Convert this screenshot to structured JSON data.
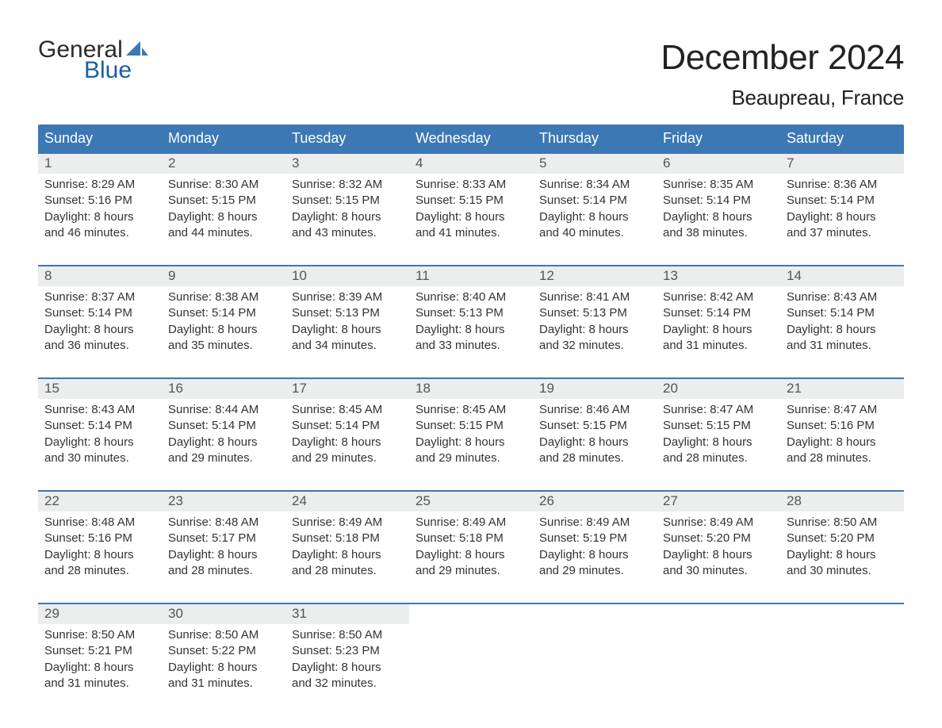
{
  "logo": {
    "word1": "General",
    "word2": "Blue",
    "text_color_dark": "#2b2b2b",
    "text_color_blue": "#1b5ea3",
    "sail_color": "#3c78b4"
  },
  "title": "December 2024",
  "location": "Beaupreau, France",
  "colors": {
    "header_bg": "#3c78b4",
    "header_text": "#ffffff",
    "daynum_bg": "#eceded",
    "daynum_text": "#555555",
    "body_text": "#333333",
    "week_border": "#3c78b4",
    "page_bg": "#ffffff"
  },
  "fonts": {
    "family": "Arial, Helvetica, sans-serif",
    "title_size_pt": 33,
    "location_size_pt": 20,
    "header_size_pt": 14,
    "daynum_size_pt": 13,
    "body_size_pt": 11
  },
  "day_headers": [
    "Sunday",
    "Monday",
    "Tuesday",
    "Wednesday",
    "Thursday",
    "Friday",
    "Saturday"
  ],
  "weeks": [
    [
      {
        "n": "1",
        "sunrise": "8:29 AM",
        "sunset": "5:16 PM",
        "dl1": "8 hours",
        "dl2": "and 46 minutes."
      },
      {
        "n": "2",
        "sunrise": "8:30 AM",
        "sunset": "5:15 PM",
        "dl1": "8 hours",
        "dl2": "and 44 minutes."
      },
      {
        "n": "3",
        "sunrise": "8:32 AM",
        "sunset": "5:15 PM",
        "dl1": "8 hours",
        "dl2": "and 43 minutes."
      },
      {
        "n": "4",
        "sunrise": "8:33 AM",
        "sunset": "5:15 PM",
        "dl1": "8 hours",
        "dl2": "and 41 minutes."
      },
      {
        "n": "5",
        "sunrise": "8:34 AM",
        "sunset": "5:14 PM",
        "dl1": "8 hours",
        "dl2": "and 40 minutes."
      },
      {
        "n": "6",
        "sunrise": "8:35 AM",
        "sunset": "5:14 PM",
        "dl1": "8 hours",
        "dl2": "and 38 minutes."
      },
      {
        "n": "7",
        "sunrise": "8:36 AM",
        "sunset": "5:14 PM",
        "dl1": "8 hours",
        "dl2": "and 37 minutes."
      }
    ],
    [
      {
        "n": "8",
        "sunrise": "8:37 AM",
        "sunset": "5:14 PM",
        "dl1": "8 hours",
        "dl2": "and 36 minutes."
      },
      {
        "n": "9",
        "sunrise": "8:38 AM",
        "sunset": "5:14 PM",
        "dl1": "8 hours",
        "dl2": "and 35 minutes."
      },
      {
        "n": "10",
        "sunrise": "8:39 AM",
        "sunset": "5:13 PM",
        "dl1": "8 hours",
        "dl2": "and 34 minutes."
      },
      {
        "n": "11",
        "sunrise": "8:40 AM",
        "sunset": "5:13 PM",
        "dl1": "8 hours",
        "dl2": "and 33 minutes."
      },
      {
        "n": "12",
        "sunrise": "8:41 AM",
        "sunset": "5:13 PM",
        "dl1": "8 hours",
        "dl2": "and 32 minutes."
      },
      {
        "n": "13",
        "sunrise": "8:42 AM",
        "sunset": "5:14 PM",
        "dl1": "8 hours",
        "dl2": "and 31 minutes."
      },
      {
        "n": "14",
        "sunrise": "8:43 AM",
        "sunset": "5:14 PM",
        "dl1": "8 hours",
        "dl2": "and 31 minutes."
      }
    ],
    [
      {
        "n": "15",
        "sunrise": "8:43 AM",
        "sunset": "5:14 PM",
        "dl1": "8 hours",
        "dl2": "and 30 minutes."
      },
      {
        "n": "16",
        "sunrise": "8:44 AM",
        "sunset": "5:14 PM",
        "dl1": "8 hours",
        "dl2": "and 29 minutes."
      },
      {
        "n": "17",
        "sunrise": "8:45 AM",
        "sunset": "5:14 PM",
        "dl1": "8 hours",
        "dl2": "and 29 minutes."
      },
      {
        "n": "18",
        "sunrise": "8:45 AM",
        "sunset": "5:15 PM",
        "dl1": "8 hours",
        "dl2": "and 29 minutes."
      },
      {
        "n": "19",
        "sunrise": "8:46 AM",
        "sunset": "5:15 PM",
        "dl1": "8 hours",
        "dl2": "and 28 minutes."
      },
      {
        "n": "20",
        "sunrise": "8:47 AM",
        "sunset": "5:15 PM",
        "dl1": "8 hours",
        "dl2": "and 28 minutes."
      },
      {
        "n": "21",
        "sunrise": "8:47 AM",
        "sunset": "5:16 PM",
        "dl1": "8 hours",
        "dl2": "and 28 minutes."
      }
    ],
    [
      {
        "n": "22",
        "sunrise": "8:48 AM",
        "sunset": "5:16 PM",
        "dl1": "8 hours",
        "dl2": "and 28 minutes."
      },
      {
        "n": "23",
        "sunrise": "8:48 AM",
        "sunset": "5:17 PM",
        "dl1": "8 hours",
        "dl2": "and 28 minutes."
      },
      {
        "n": "24",
        "sunrise": "8:49 AM",
        "sunset": "5:18 PM",
        "dl1": "8 hours",
        "dl2": "and 28 minutes."
      },
      {
        "n": "25",
        "sunrise": "8:49 AM",
        "sunset": "5:18 PM",
        "dl1": "8 hours",
        "dl2": "and 29 minutes."
      },
      {
        "n": "26",
        "sunrise": "8:49 AM",
        "sunset": "5:19 PM",
        "dl1": "8 hours",
        "dl2": "and 29 minutes."
      },
      {
        "n": "27",
        "sunrise": "8:49 AM",
        "sunset": "5:20 PM",
        "dl1": "8 hours",
        "dl2": "and 30 minutes."
      },
      {
        "n": "28",
        "sunrise": "8:50 AM",
        "sunset": "5:20 PM",
        "dl1": "8 hours",
        "dl2": "and 30 minutes."
      }
    ],
    [
      {
        "n": "29",
        "sunrise": "8:50 AM",
        "sunset": "5:21 PM",
        "dl1": "8 hours",
        "dl2": "and 31 minutes."
      },
      {
        "n": "30",
        "sunrise": "8:50 AM",
        "sunset": "5:22 PM",
        "dl1": "8 hours",
        "dl2": "and 31 minutes."
      },
      {
        "n": "31",
        "sunrise": "8:50 AM",
        "sunset": "5:23 PM",
        "dl1": "8 hours",
        "dl2": "and 32 minutes."
      },
      null,
      null,
      null,
      null
    ]
  ],
  "labels": {
    "sunrise_prefix": "Sunrise: ",
    "sunset_prefix": "Sunset: ",
    "daylight_prefix": "Daylight: "
  }
}
